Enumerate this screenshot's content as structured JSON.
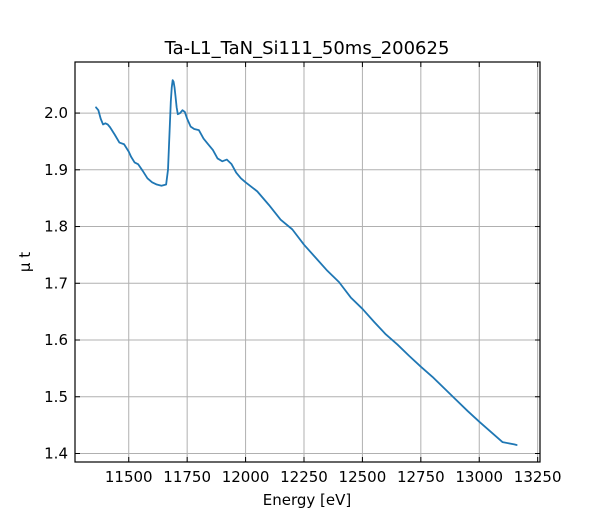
{
  "chart_data": {
    "type": "line",
    "title": "Ta-L1_TaN_Si111_50ms_200625",
    "xlabel": "Energy [eV]",
    "ylabel": "μ t",
    "xlim": [
      11270,
      13260
    ],
    "ylim": [
      1.385,
      2.09
    ],
    "grid": true,
    "xticks": [
      11500,
      11750,
      12000,
      12250,
      12500,
      12750,
      13000,
      13250
    ],
    "xtick_labels": [
      "11500",
      "11750",
      "12000",
      "12250",
      "12500",
      "12750",
      "13000",
      "13250"
    ],
    "yticks": [
      1.4,
      1.5,
      1.6,
      1.7,
      1.8,
      1.9,
      2.0
    ],
    "ytick_labels": [
      "1.4",
      "1.5",
      "1.6",
      "1.7",
      "1.8",
      "1.9",
      "2.0"
    ],
    "series": [
      {
        "color": "#1f77b4",
        "x": [
          11360,
          11370,
          11380,
          11390,
          11400,
          11410,
          11420,
          11440,
          11460,
          11480,
          11500,
          11510,
          11525,
          11540,
          11560,
          11580,
          11600,
          11620,
          11640,
          11660,
          11668,
          11672,
          11676,
          11680,
          11684,
          11688,
          11692,
          11696,
          11700,
          11705,
          11710,
          11720,
          11730,
          11740,
          11750,
          11765,
          11780,
          11800,
          11820,
          11840,
          11860,
          11880,
          11900,
          11920,
          11940,
          11960,
          11980,
          12000,
          12050,
          12100,
          12150,
          12200,
          12250,
          12300,
          12350,
          12400,
          12450,
          12500,
          12550,
          12600,
          12650,
          12700,
          12750,
          12800,
          12850,
          12900,
          12950,
          13000,
          13050,
          13100,
          13150,
          13160
        ],
        "y": [
          2.01,
          2.005,
          1.99,
          1.98,
          1.982,
          1.98,
          1.975,
          1.962,
          1.948,
          1.945,
          1.932,
          1.923,
          1.913,
          1.91,
          1.898,
          1.885,
          1.878,
          1.874,
          1.872,
          1.874,
          1.9,
          1.94,
          1.98,
          2.02,
          2.045,
          2.058,
          2.055,
          2.045,
          2.03,
          2.01,
          1.998,
          2.0,
          2.005,
          2.002,
          1.99,
          1.976,
          1.972,
          1.97,
          1.955,
          1.945,
          1.935,
          1.92,
          1.915,
          1.918,
          1.91,
          1.895,
          1.885,
          1.878,
          1.862,
          1.838,
          1.812,
          1.795,
          1.768,
          1.745,
          1.722,
          1.702,
          1.675,
          1.655,
          1.632,
          1.61,
          1.592,
          1.572,
          1.553,
          1.535,
          1.515,
          1.495,
          1.475,
          1.456,
          1.438,
          1.42,
          1.416,
          1.415
        ]
      }
    ]
  }
}
